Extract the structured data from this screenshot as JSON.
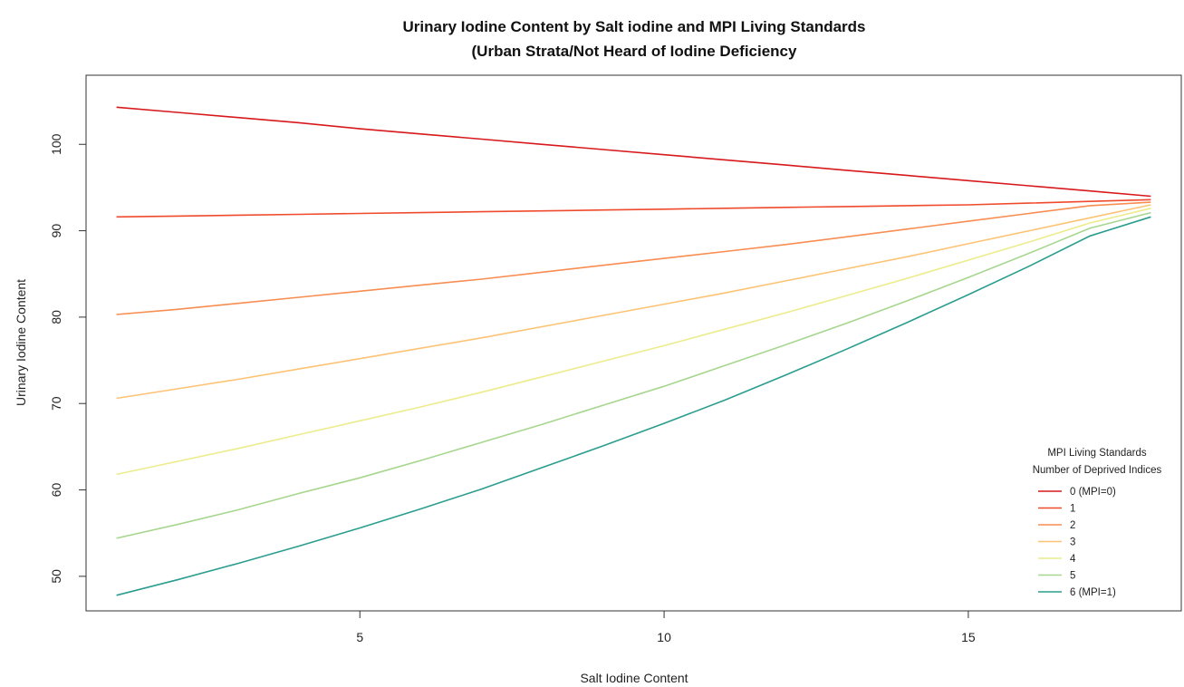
{
  "chart_data": {
    "type": "line",
    "title": "Urinary Iodine Content by Salt iodine and MPI Living Standards",
    "subtitle": "(Urban Strata/Not Heard of Iodine Deficiency",
    "xlabel": "Salt Iodine Content",
    "ylabel": "Urinary Iodine Content",
    "xlim": [
      0.5,
      18.5
    ],
    "ylim": [
      46,
      108
    ],
    "xticks": [
      5,
      10,
      15
    ],
    "yticks": [
      50,
      60,
      70,
      80,
      90,
      100
    ],
    "grid": false,
    "legend": {
      "placement": "bottom-right",
      "title_line1": "MPI Living Standards",
      "title_line2": "Number of Deprived Indices"
    },
    "x": [
      1,
      2,
      3,
      4,
      5,
      6,
      7,
      8,
      9,
      10,
      11,
      12,
      13,
      14,
      15,
      16,
      17,
      18
    ],
    "series": [
      {
        "name": "0 (MPI=0)",
        "color": "#d7191c",
        "values": [
          104.3,
          103.7,
          103.1,
          102.5,
          101.8,
          101.2,
          100.6,
          100.0,
          99.4,
          98.8,
          98.2,
          97.6,
          97.0,
          96.4,
          95.8,
          95.2,
          94.6,
          94.0
        ]
      },
      {
        "name": "1",
        "color": "#f04a2c",
        "values": [
          91.6,
          91.7,
          91.8,
          91.9,
          92.0,
          92.1,
          92.2,
          92.3,
          92.4,
          92.5,
          92.6,
          92.7,
          92.8,
          92.9,
          93.0,
          93.2,
          93.4,
          93.6
        ]
      },
      {
        "name": "2",
        "color": "#f88d52",
        "values": [
          80.3,
          80.9,
          81.6,
          82.3,
          83.0,
          83.7,
          84.4,
          85.2,
          86.0,
          86.8,
          87.6,
          88.4,
          89.3,
          90.2,
          91.1,
          92.0,
          92.9,
          93.3
        ]
      },
      {
        "name": "3",
        "color": "#fdc374",
        "values": [
          70.6,
          71.7,
          72.8,
          74.0,
          75.2,
          76.4,
          77.6,
          78.9,
          80.2,
          81.5,
          82.8,
          84.2,
          85.6,
          87.0,
          88.5,
          90.0,
          91.5,
          93.0
        ]
      },
      {
        "name": "4",
        "color": "#ecec8c",
        "values": [
          61.8,
          63.3,
          64.8,
          66.4,
          68.0,
          69.6,
          71.3,
          73.1,
          74.9,
          76.7,
          78.6,
          80.5,
          82.5,
          84.5,
          86.6,
          88.7,
          90.9,
          92.6
        ]
      },
      {
        "name": "5",
        "color": "#a7d68e",
        "values": [
          54.4,
          56.0,
          57.7,
          59.6,
          61.4,
          63.4,
          65.5,
          67.6,
          69.8,
          72.0,
          74.4,
          76.8,
          79.3,
          81.9,
          84.6,
          87.4,
          90.3,
          92.1
        ]
      },
      {
        "name": "6 (MPI=1)",
        "color": "#2a9d8f",
        "values": [
          47.8,
          49.6,
          51.5,
          53.5,
          55.6,
          57.8,
          60.1,
          62.6,
          65.1,
          67.7,
          70.4,
          73.3,
          76.3,
          79.4,
          82.6,
          85.9,
          89.4,
          91.6
        ]
      }
    ]
  }
}
